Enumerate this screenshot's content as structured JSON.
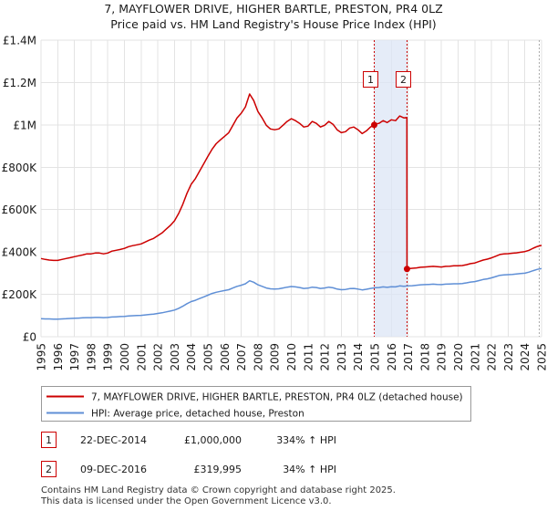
{
  "chart_data": {
    "type": "line",
    "title": "7, MAYFLOWER DRIVE, HIGHER BARTLE, PRESTON, PR4 0LZ",
    "subtitle": "Price paid vs. HM Land Registry's House Price Index (HPI)",
    "xlabel": "",
    "ylabel": "",
    "xlim": [
      1995,
      2025
    ],
    "ylim": [
      0,
      1400000
    ],
    "grid": true,
    "legend_position": "below",
    "x_ticks": [
      1995,
      1996,
      1997,
      1998,
      1999,
      2000,
      2001,
      2002,
      2003,
      2004,
      2005,
      2006,
      2007,
      2008,
      2009,
      2010,
      2011,
      2012,
      2013,
      2014,
      2015,
      2016,
      2017,
      2018,
      2019,
      2020,
      2021,
      2022,
      2023,
      2024,
      2025
    ],
    "y_ticks": [
      {
        "value": 0,
        "label": "£0"
      },
      {
        "value": 200000,
        "label": "£200K"
      },
      {
        "value": 400000,
        "label": "£400K"
      },
      {
        "value": 600000,
        "label": "£600K"
      },
      {
        "value": 800000,
        "label": "£800K"
      },
      {
        "value": 1000000,
        "label": "£1M"
      },
      {
        "value": 1200000,
        "label": "£1.2M"
      },
      {
        "value": 1400000,
        "label": "£1.4M"
      }
    ],
    "highlight_range": [
      2014.973,
      2016.937
    ],
    "highlight_color": "#dce5f6",
    "series": [
      {
        "name": "7, MAYFLOWER DRIVE, HIGHER BARTLE, PRESTON, PR4 0LZ (detached house)",
        "color": "#cc0000",
        "x": [
          1995,
          1995.25,
          1995.5,
          1995.75,
          1996,
          1996.25,
          1996.5,
          1996.75,
          1997,
          1997.25,
          1997.5,
          1997.75,
          1998,
          1998.25,
          1998.5,
          1998.75,
          1999,
          1999.25,
          1999.5,
          1999.75,
          2000,
          2000.25,
          2000.5,
          2000.75,
          2001,
          2001.25,
          2001.5,
          2001.75,
          2002,
          2002.25,
          2002.5,
          2002.75,
          2003,
          2003.25,
          2003.5,
          2003.75,
          2004,
          2004.25,
          2004.5,
          2004.75,
          2005,
          2005.25,
          2005.5,
          2005.75,
          2006,
          2006.25,
          2006.5,
          2006.75,
          2007,
          2007.25,
          2007.5,
          2007.75,
          2008,
          2008.25,
          2008.5,
          2008.75,
          2009,
          2009.25,
          2009.5,
          2009.75,
          2010,
          2010.25,
          2010.5,
          2010.75,
          2011,
          2011.25,
          2011.5,
          2011.75,
          2012,
          2012.25,
          2012.5,
          2012.75,
          2013,
          2013.25,
          2013.5,
          2013.75,
          2014,
          2014.25,
          2014.5,
          2014.75,
          2014.973,
          2015,
          2015.25,
          2015.5,
          2015.75,
          2016,
          2016.25,
          2016.5,
          2016.75,
          2016.93,
          2016.937,
          2017,
          2017.25,
          2017.5,
          2017.75,
          2018,
          2018.25,
          2018.5,
          2018.75,
          2019,
          2019.25,
          2019.5,
          2019.75,
          2020,
          2020.25,
          2020.5,
          2020.75,
          2021,
          2021.25,
          2021.5,
          2021.75,
          2022,
          2022.25,
          2022.5,
          2022.75,
          2023,
          2023.25,
          2023.5,
          2023.75,
          2024,
          2024.25,
          2024.5,
          2024.75,
          2025
        ],
        "values": [
          369000,
          365000,
          362000,
          360000,
          360000,
          365000,
          369000,
          373000,
          378000,
          382000,
          386000,
          391000,
          391000,
          395000,
          395000,
          391000,
          395000,
          404000,
          408000,
          412000,
          417000,
          425000,
          430000,
          434000,
          438000,
          447000,
          456000,
          464000,
          477000,
          490000,
          508000,
          525000,
          547000,
          582000,
          625000,
          677000,
          720000,
          746000,
          781000,
          816000,
          851000,
          885000,
          911000,
          929000,
          946000,
          963000,
          998000,
          1033000,
          1055000,
          1085000,
          1146000,
          1115000,
          1063000,
          1033000,
          998000,
          981000,
          977000,
          981000,
          998000,
          1016000,
          1029000,
          1020000,
          1007000,
          990000,
          994000,
          1016000,
          1007000,
          990000,
          998000,
          1016000,
          1003000,
          977000,
          963000,
          968000,
          985000,
          990000,
          977000,
          959000,
          972000,
          990000,
          1000000,
          1003000,
          1007000,
          1020000,
          1011000,
          1024000,
          1020000,
          1042000,
          1033000,
          1035000,
          319995,
          321000,
          323000,
          325000,
          328000,
          329000,
          331000,
          332000,
          331000,
          329000,
          332000,
          333000,
          335000,
          335000,
          336000,
          340000,
          345000,
          348000,
          355000,
          362000,
          366000,
          372000,
          380000,
          388000,
          391000,
          392000,
          394000,
          396000,
          399000,
          402000,
          408000,
          418000,
          426000,
          431000
        ]
      },
      {
        "name": "HPI: Average price, detached house, Preston",
        "color": "#5f8fd6",
        "x": [
          1995,
          1995.25,
          1995.5,
          1995.75,
          1996,
          1996.25,
          1996.5,
          1996.75,
          1997,
          1997.25,
          1997.5,
          1997.75,
          1998,
          1998.25,
          1998.5,
          1998.75,
          1999,
          1999.25,
          1999.5,
          1999.75,
          2000,
          2000.25,
          2000.5,
          2000.75,
          2001,
          2001.25,
          2001.5,
          2001.75,
          2002,
          2002.25,
          2002.5,
          2002.75,
          2003,
          2003.25,
          2003.5,
          2003.75,
          2004,
          2004.25,
          2004.5,
          2004.75,
          2005,
          2005.25,
          2005.5,
          2005.75,
          2006,
          2006.25,
          2006.5,
          2006.75,
          2007,
          2007.25,
          2007.5,
          2007.75,
          2008,
          2008.25,
          2008.5,
          2008.75,
          2009,
          2009.25,
          2009.5,
          2009.75,
          2010,
          2010.25,
          2010.5,
          2010.75,
          2011,
          2011.25,
          2011.5,
          2011.75,
          2012,
          2012.25,
          2012.5,
          2012.75,
          2013,
          2013.25,
          2013.5,
          2013.75,
          2014,
          2014.25,
          2014.5,
          2014.75,
          2015,
          2015.25,
          2015.5,
          2015.75,
          2016,
          2016.25,
          2016.5,
          2016.75,
          2017,
          2017.25,
          2017.5,
          2017.75,
          2018,
          2018.25,
          2018.5,
          2018.75,
          2019,
          2019.25,
          2019.5,
          2019.75,
          2020,
          2020.25,
          2020.5,
          2020.75,
          2021,
          2021.25,
          2021.5,
          2021.75,
          2022,
          2022.25,
          2022.5,
          2022.75,
          2023,
          2023.25,
          2023.5,
          2023.75,
          2024,
          2024.25,
          2024.5,
          2024.75,
          2025
        ],
        "values": [
          85000,
          84000,
          84000,
          83000,
          83000,
          84000,
          85000,
          86000,
          87000,
          88000,
          89000,
          90000,
          90000,
          91000,
          91000,
          90000,
          91000,
          93000,
          94000,
          95000,
          96000,
          98000,
          99000,
          100000,
          101000,
          103000,
          105000,
          107000,
          110000,
          113000,
          117000,
          121000,
          126000,
          134000,
          144000,
          156000,
          166000,
          172000,
          180000,
          188000,
          196000,
          204000,
          210000,
          214000,
          218000,
          222000,
          230000,
          238000,
          243000,
          250000,
          264000,
          257000,
          245000,
          238000,
          230000,
          226000,
          225000,
          226000,
          230000,
          234000,
          237000,
          235000,
          232000,
          228000,
          229000,
          234000,
          232000,
          228000,
          230000,
          234000,
          231000,
          225000,
          222000,
          223000,
          227000,
          228000,
          225000,
          221000,
          224000,
          228000,
          231000,
          232000,
          235000,
          233000,
          236000,
          235000,
          240000,
          238000,
          240000,
          241000,
          243000,
          245000,
          246000,
          247000,
          248000,
          247000,
          246000,
          248000,
          249000,
          250000,
          250000,
          251000,
          254000,
          258000,
          260000,
          265000,
          270000,
          273000,
          278000,
          284000,
          290000,
          292000,
          293000,
          294000,
          296000,
          298000,
          300000,
          305000,
          312000,
          318000,
          322000
        ]
      }
    ],
    "sales": [
      {
        "label": "1",
        "date": "22-DEC-2014",
        "x": 2014.973,
        "price": 1000000,
        "price_label": "£1,000,000",
        "hpi_change": "334% ↑ HPI"
      },
      {
        "label": "2",
        "date": "09-DEC-2016",
        "x": 2016.937,
        "price": 319995,
        "price_label": "£319,995",
        "hpi_change": "34% ↑ HPI"
      }
    ]
  },
  "footer": {
    "line1": "Contains HM Land Registry data © Crown copyright and database right 2025.",
    "line2": "This data is licensed under the Open Government Licence v3.0."
  }
}
